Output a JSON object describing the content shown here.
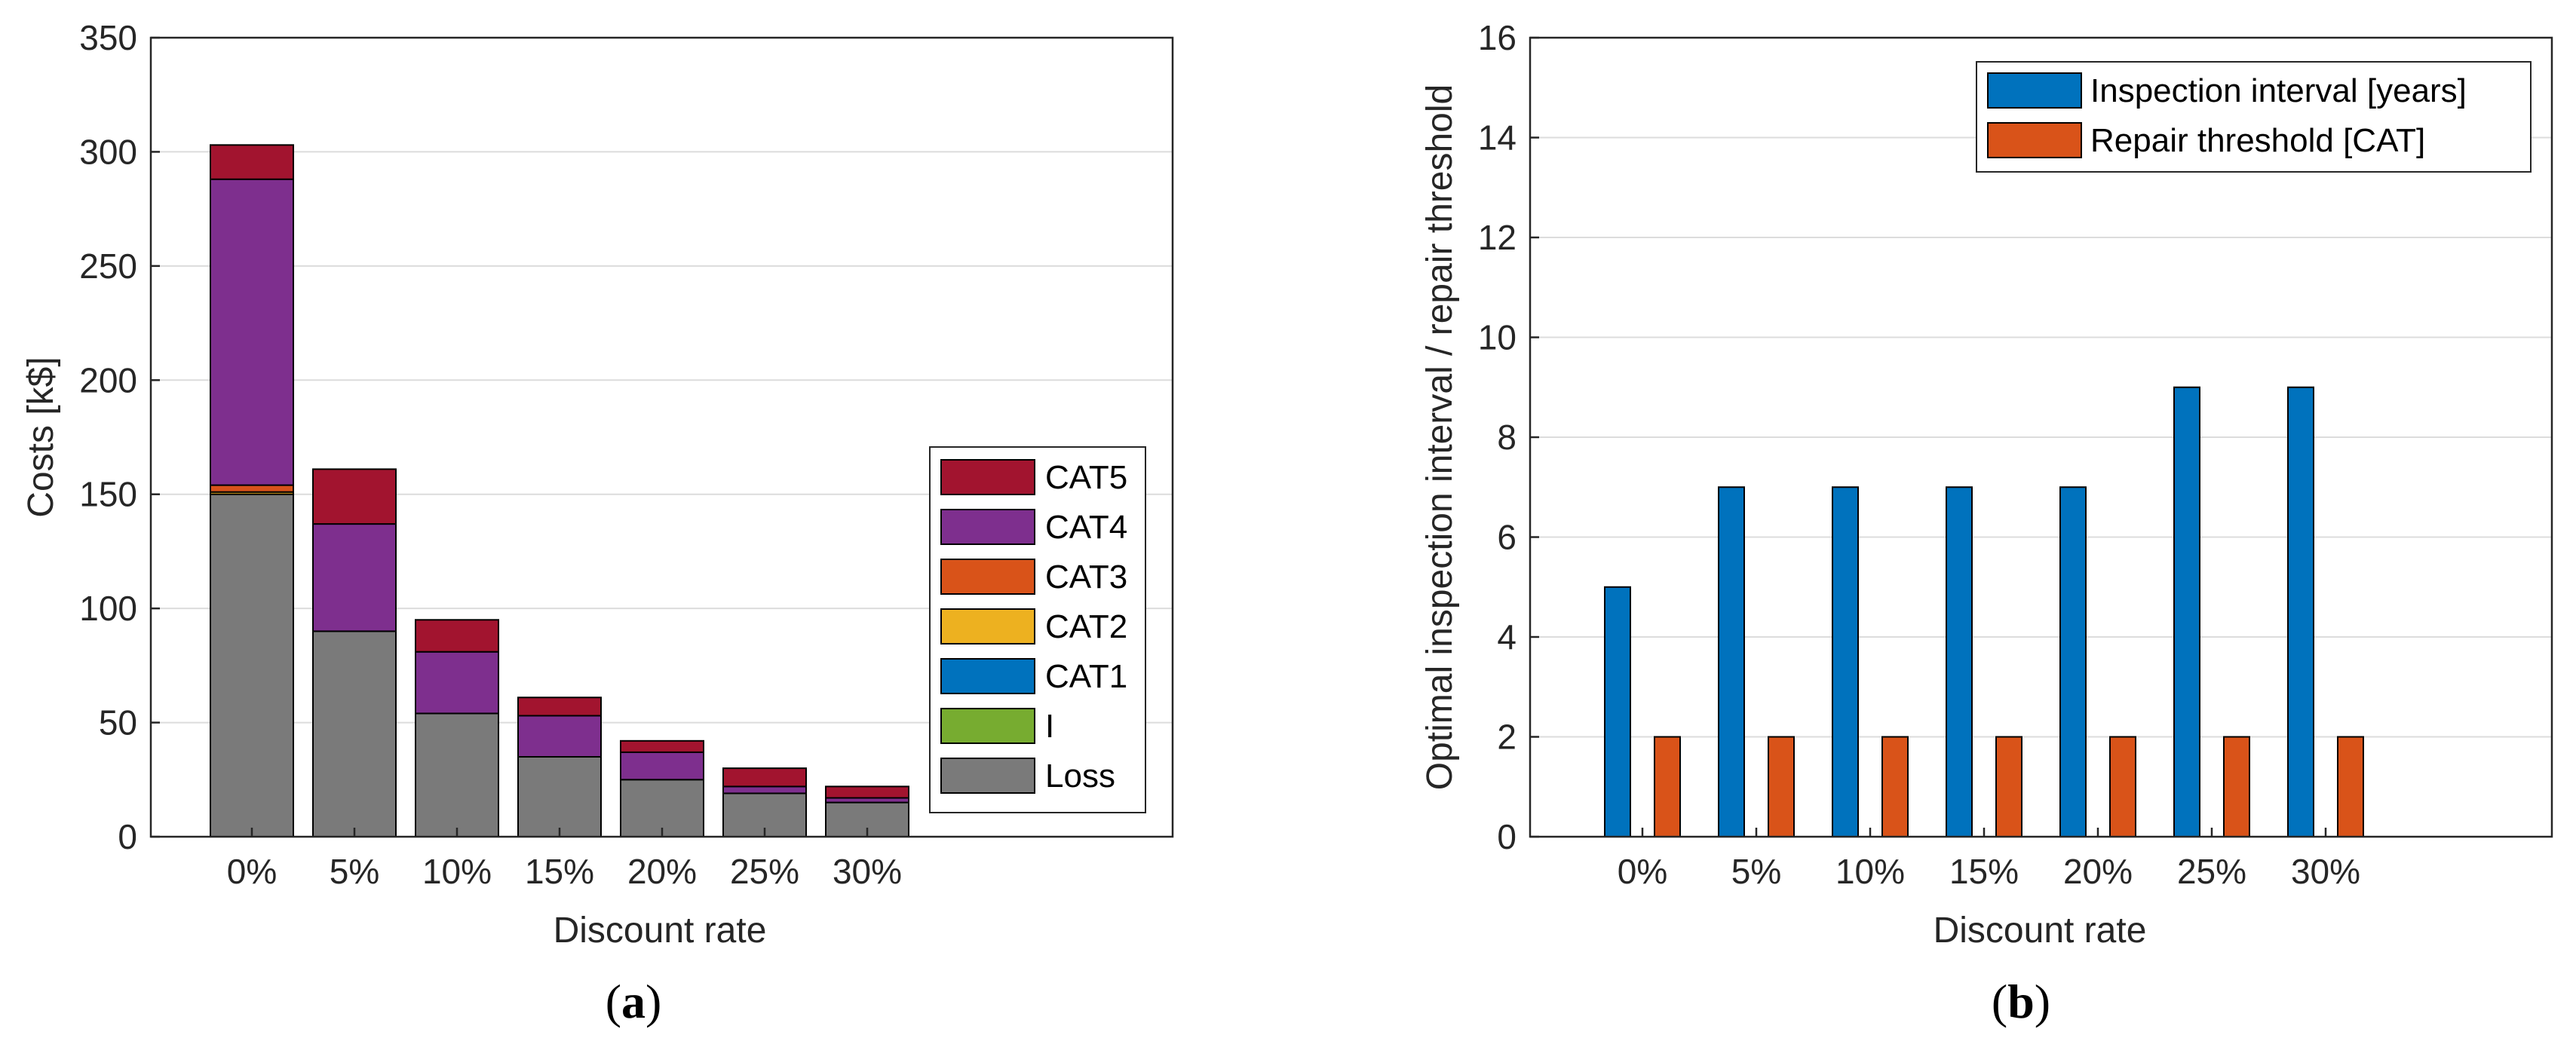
{
  "chart_data": [
    {
      "panel": "a",
      "caption_prefix": "(",
      "caption_letter": "a",
      "caption_suffix": ")",
      "type": "bar",
      "stacked": true,
      "categories": [
        "0%",
        "5%",
        "10%",
        "15%",
        "20%",
        "25%",
        "30%"
      ],
      "xlabel": "Discount rate",
      "ylabel": "Costs [k$]",
      "ylim": [
        0,
        350
      ],
      "yticks": [
        "0",
        "50",
        "100",
        "150",
        "200",
        "250",
        "300",
        "350"
      ],
      "grid": true,
      "legend_position": "lower-right",
      "series": [
        {
          "name": "Loss",
          "color": "#7a7a7a",
          "values": [
            150,
            90,
            54,
            35,
            25,
            19,
            15
          ]
        },
        {
          "name": "I",
          "color": "#77ac30",
          "values": [
            0,
            0,
            0,
            0,
            0,
            0,
            0
          ]
        },
        {
          "name": "CAT1",
          "color": "#0072bd",
          "values": [
            0,
            0,
            0,
            0,
            0,
            0,
            0
          ]
        },
        {
          "name": "CAT2",
          "color": "#edb120",
          "values": [
            1,
            0,
            0,
            0,
            0,
            0,
            0
          ]
        },
        {
          "name": "CAT3",
          "color": "#d95319",
          "values": [
            3,
            0,
            0,
            0,
            0,
            0,
            0
          ]
        },
        {
          "name": "CAT4",
          "color": "#7e2f8e",
          "values": [
            134,
            47,
            27,
            18,
            12,
            3,
            2
          ]
        },
        {
          "name": "CAT5",
          "color": "#a2142f",
          "values": [
            15,
            24,
            14,
            8,
            5,
            8,
            5
          ]
        }
      ],
      "legend_order": [
        "CAT5",
        "CAT4",
        "CAT3",
        "CAT2",
        "CAT1",
        "I",
        "Loss"
      ]
    },
    {
      "panel": "b",
      "caption_prefix": "(",
      "caption_letter": "b",
      "caption_suffix": ")",
      "type": "bar",
      "stacked": false,
      "categories": [
        "0%",
        "5%",
        "10%",
        "15%",
        "20%",
        "25%",
        "30%"
      ],
      "xlabel": "Discount rate",
      "ylabel": "Optimal inspection interval / repair threshold",
      "ylim": [
        0,
        16
      ],
      "yticks": [
        "0",
        "2",
        "4",
        "6",
        "8",
        "10",
        "12",
        "14",
        "16"
      ],
      "grid": true,
      "legend_position": "top-right",
      "series": [
        {
          "name": "Inspection interval [years]",
          "color": "#0072bd",
          "values": [
            5,
            7,
            7,
            7,
            7,
            9,
            9
          ]
        },
        {
          "name": "Repair threshold [CAT]",
          "color": "#d95319",
          "values": [
            2,
            2,
            2,
            2,
            2,
            2,
            2
          ]
        }
      ]
    }
  ]
}
